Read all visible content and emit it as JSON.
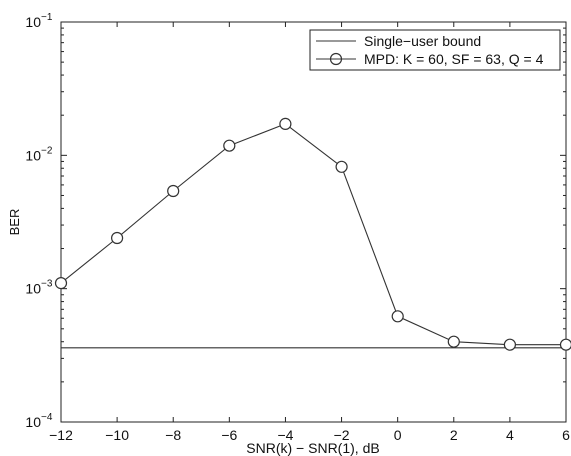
{
  "chart_data": {
    "type": "line",
    "xlabel": "SNR(k) − SNR(1), dB",
    "ylabel": "BER",
    "xlim": [
      -12,
      6
    ],
    "ylim": [
      0.0001,
      0.1
    ],
    "yscale": "log",
    "grid": false,
    "legend": "top-right",
    "x_ticks": [
      -12,
      -10,
      -8,
      -6,
      -4,
      -2,
      0,
      2,
      4,
      6
    ],
    "x_tick_labels": [
      "−12",
      "−10",
      "−8",
      "−6",
      "−4",
      "−2",
      "0",
      "2",
      "4",
      "6"
    ],
    "y_ticks": [
      0.0001,
      0.001,
      0.01,
      0.1
    ],
    "y_tick_labels": [
      {
        "base": "10",
        "exp": "−4"
      },
      {
        "base": "10",
        "exp": "−3"
      },
      {
        "base": "10",
        "exp": "−2"
      },
      {
        "base": "10",
        "exp": "−1"
      }
    ],
    "series": [
      {
        "name": "Single−user bound",
        "style": "line",
        "color": "#333333",
        "x": [
          -12,
          6
        ],
        "y": [
          0.00036,
          0.00036
        ]
      },
      {
        "name": "MPD: K = 60, SF = 63, Q = 4",
        "style": "line-circle",
        "color": "#333333",
        "x": [
          -12,
          -10,
          -8,
          -6,
          -4,
          -2,
          0,
          2,
          4,
          6
        ],
        "y": [
          0.0011,
          0.0024,
          0.0054,
          0.0118,
          0.0172,
          0.0082,
          0.00062,
          0.0004,
          0.00038,
          0.00038
        ]
      }
    ]
  }
}
